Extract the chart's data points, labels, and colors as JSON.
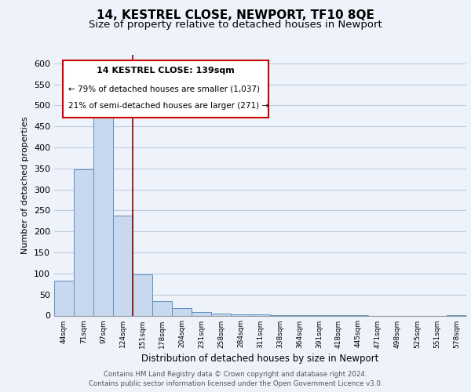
{
  "title": "14, KESTREL CLOSE, NEWPORT, TF10 8QE",
  "subtitle": "Size of property relative to detached houses in Newport",
  "xlabel": "Distribution of detached houses by size in Newport",
  "ylabel": "Number of detached properties",
  "bar_color": "#c8d8ee",
  "bar_edge_color": "#6090c0",
  "bin_labels": [
    "44sqm",
    "71sqm",
    "97sqm",
    "124sqm",
    "151sqm",
    "178sqm",
    "204sqm",
    "231sqm",
    "258sqm",
    "284sqm",
    "311sqm",
    "338sqm",
    "364sqm",
    "391sqm",
    "418sqm",
    "445sqm",
    "471sqm",
    "498sqm",
    "525sqm",
    "551sqm",
    "578sqm"
  ],
  "bar_values": [
    83,
    348,
    476,
    237,
    97,
    35,
    18,
    8,
    5,
    3,
    2,
    1,
    1,
    1,
    1,
    1,
    0,
    0,
    0,
    0,
    1
  ],
  "ylim": [
    0,
    620
  ],
  "yticks": [
    0,
    50,
    100,
    150,
    200,
    250,
    300,
    350,
    400,
    450,
    500,
    550,
    600
  ],
  "annotation_title": "14 KESTREL CLOSE: 139sqm",
  "annotation_line1": "← 79% of detached houses are smaller (1,037)",
  "annotation_line2": "21% of semi-detached houses are larger (271) →",
  "property_line_index": 3,
  "footer_line1": "Contains HM Land Registry data © Crown copyright and database right 2024.",
  "footer_line2": "Contains public sector information licensed under the Open Government Licence v3.0.",
  "background_color": "#eef2fa",
  "plot_bg_color": "#eef2fa",
  "grid_color": "#c0cce0",
  "title_fontsize": 11,
  "subtitle_fontsize": 9.5,
  "annotation_fontsize_title": 8,
  "annotation_fontsize_body": 7.5
}
